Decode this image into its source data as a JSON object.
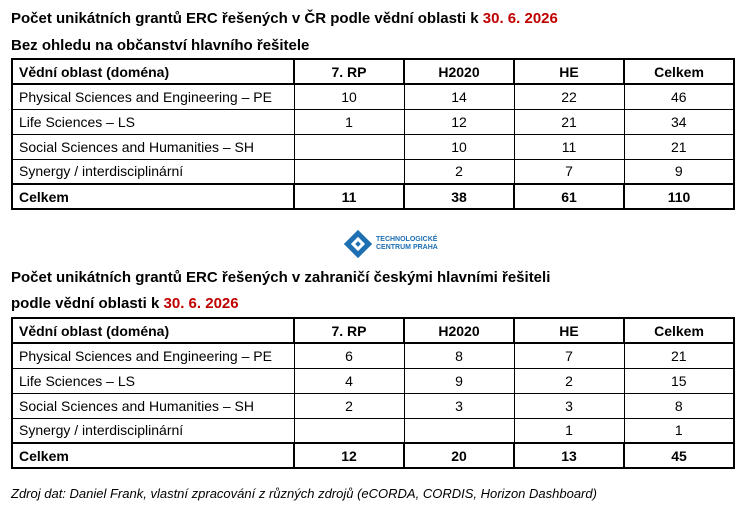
{
  "table1": {
    "title_main": "Počet unikátních grantů ERC řešených v ČR podle vědní oblasti k ",
    "title_date": "30. 6. 2026",
    "subtitle": "Bez ohledu na občanství hlavního řešitele",
    "headers": [
      "Vědní oblast (doména)",
      "7. RP",
      "H2020",
      "HE",
      "Celkem"
    ],
    "rows": [
      [
        "Physical Sciences and Engineering – PE",
        "10",
        "14",
        "22",
        "46"
      ],
      [
        "Life Sciences – LS",
        "1",
        "12",
        "21",
        "34"
      ],
      [
        "Social Sciences and Humanities – SH",
        "",
        "10",
        "11",
        "21"
      ],
      [
        "Synergy / interdisciplinární",
        "",
        "2",
        "7",
        "9"
      ]
    ],
    "total": [
      "Celkem",
      "11",
      "38",
      "61",
      "110"
    ]
  },
  "logo": {
    "line1": "TECHNOLOGICKÉ",
    "line2": "CENTRUM PRAHA",
    "color": "#1f6fb3"
  },
  "table2": {
    "title_line1": "Počet unikátních grantů ERC řešených v zahraničí českými hlavními řešiteli",
    "title_line2_main": "podle vědní oblasti k ",
    "title_date": "30. 6. 2026",
    "headers": [
      "Vědní oblast (doména)",
      "7. RP",
      "H2020",
      "HE",
      "Celkem"
    ],
    "rows": [
      [
        "Physical Sciences and Engineering – PE",
        "6",
        "8",
        "7",
        "21"
      ],
      [
        "Life Sciences – LS",
        "4",
        "9",
        "2",
        "15"
      ],
      [
        "Social Sciences and Humanities – SH",
        "2",
        "3",
        "3",
        "8"
      ],
      [
        "Synergy / interdisciplinární",
        "",
        "",
        "1",
        "1"
      ]
    ],
    "total": [
      "Celkem",
      "12",
      "20",
      "13",
      "45"
    ]
  },
  "source": "Zdroj dat: Daniel Frank, vlastní zpracování z různých zdrojů (eCORDA, CORDIS, Horizon Dashboard)"
}
